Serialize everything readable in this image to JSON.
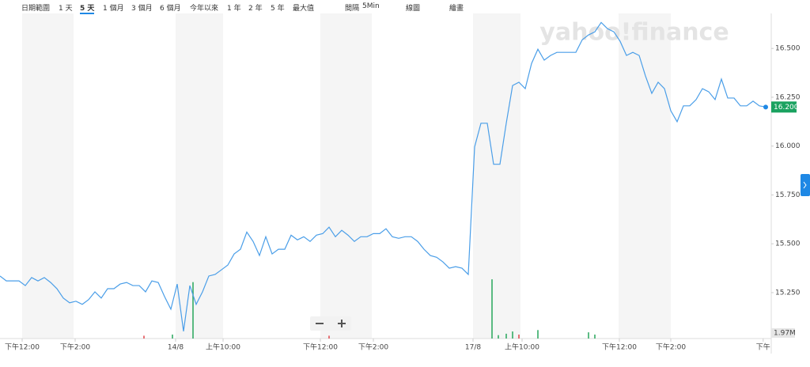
{
  "toolbar": {
    "items": [
      "日期範圍",
      "1 天",
      "5 天",
      "1 個月",
      "3 個月",
      "6 個月",
      "今年以來",
      "1 年",
      "2 年",
      "5 年",
      "最大值",
      "間隔",
      "5Min",
      "線圖",
      "繪畫"
    ],
    "selected": 2
  },
  "chart_data": {
    "type": "line",
    "watermark": "yahoo!finance",
    "x": [
      0,
      1,
      2,
      3,
      4,
      5,
      6,
      7,
      8,
      9,
      10,
      11,
      12,
      13,
      14,
      15,
      16,
      17,
      18,
      19,
      20,
      21,
      22,
      23,
      24,
      25,
      26,
      27,
      28,
      29,
      30,
      31,
      32,
      33,
      34,
      35,
      36,
      37,
      38,
      39,
      40,
      41,
      42,
      43,
      44,
      45,
      46,
      47,
      48,
      49,
      50,
      51,
      52,
      53,
      54,
      55,
      56,
      57,
      58,
      59,
      60,
      61,
      62,
      63,
      64,
      65,
      66,
      67,
      68,
      69,
      70,
      71,
      72,
      73,
      74,
      75,
      76,
      77,
      78,
      79,
      80,
      81,
      82,
      83,
      84,
      85,
      86,
      87,
      88,
      89,
      90,
      91,
      92,
      93,
      94,
      95,
      96,
      97,
      98,
      99,
      100,
      101,
      102,
      103,
      104,
      105,
      106,
      107,
      108,
      109,
      110,
      111,
      112,
      113,
      114,
      115,
      116,
      117,
      118,
      119,
      120,
      121
    ],
    "series": [
      {
        "name": "price",
        "color": "#4a9ee8",
        "values": [
          15.335,
          15.31,
          15.31,
          15.31,
          15.286,
          15.327,
          15.31,
          15.327,
          15.302,
          15.27,
          15.222,
          15.198,
          15.206,
          15.19,
          15.214,
          15.254,
          15.222,
          15.27,
          15.27,
          15.294,
          15.302,
          15.286,
          15.286,
          15.254,
          15.31,
          15.302,
          15.23,
          15.165,
          15.294,
          15.052,
          15.286,
          15.19,
          15.254,
          15.335,
          15.343,
          15.367,
          15.391,
          15.448,
          15.472,
          15.56,
          15.512,
          15.44,
          15.536,
          15.448,
          15.472,
          15.472,
          15.544,
          15.52,
          15.536,
          15.512,
          15.544,
          15.552,
          15.585,
          15.536,
          15.569,
          15.544,
          15.512,
          15.536,
          15.536,
          15.552,
          15.552,
          15.577,
          15.536,
          15.528,
          15.536,
          15.536,
          15.512,
          15.472,
          15.44,
          15.431,
          15.407,
          15.375,
          15.383,
          15.375,
          15.343,
          15.996,
          16.117,
          16.117,
          15.907,
          15.907,
          16.117,
          16.31,
          16.327,
          16.294,
          16.423,
          16.496,
          16.44,
          16.464,
          16.48,
          16.48,
          16.48,
          16.48,
          16.544,
          16.569,
          16.585,
          16.633,
          16.601,
          16.585,
          16.536,
          16.464,
          16.48,
          16.464,
          16.359,
          16.27,
          16.327,
          16.294,
          16.181,
          16.125,
          16.206,
          16.206,
          16.238,
          16.294,
          16.278,
          16.238,
          16.343,
          16.246,
          16.246,
          16.206,
          16.206,
          16.23,
          16.206,
          16.2
        ]
      }
    ],
    "current_price": {
      "value": 16.2,
      "label": "16.200"
    },
    "volume": {
      "x": [
        22.75,
        27.25,
        30.5,
        52,
        77.75,
        78.75,
        80,
        81,
        82,
        85,
        93,
        94
      ],
      "values": [
        1,
        1.4,
        20,
        1,
        21,
        1.2,
        1.7,
        2.5,
        1.4,
        3,
        2.2,
        1.4
      ],
      "colors": [
        "#e0474c",
        "#26a65b",
        "#26a65b",
        "#e0474c",
        "#26a65b",
        "#26a65b",
        "#26a65b",
        "#26a65b",
        "#e0474c",
        "#26a65b",
        "#26a65b",
        "#26a65b"
      ]
    },
    "xlim": [
      0,
      121.875
    ],
    "ylim": [
      15.015,
      16.675
    ],
    "y2lim": [
      0,
      115
    ],
    "yticks": [
      {
        "value": 15.25,
        "label": "15.250"
      },
      {
        "value": 15.5,
        "label": "15.500"
      },
      {
        "value": 15.75,
        "label": "15.750"
      },
      {
        "value": 16,
        "label": "16.000"
      },
      {
        "value": 16.25,
        "label": "16.250"
      },
      {
        "value": 16.5,
        "label": "16.500"
      }
    ],
    "y2ticks": [
      {
        "value": 1.97,
        "label": "1.97M"
      }
    ],
    "xticks": [
      {
        "value": 3.5,
        "label": "下午12:00"
      },
      {
        "value": 11.875,
        "label": "下午2:00"
      },
      {
        "value": 27.75,
        "label": "14/8"
      },
      {
        "value": 35.25,
        "label": "上午10:00"
      },
      {
        "value": 50.625,
        "label": "下午12:00"
      },
      {
        "value": 59,
        "label": "下午2:00"
      },
      {
        "value": 74.75,
        "label": "17/8"
      },
      {
        "value": 82.5,
        "label": "上午10:00"
      },
      {
        "value": 97.875,
        "label": "下午12:00"
      },
      {
        "value": 106,
        "label": "下午2:00"
      },
      {
        "value": 120.6,
        "label": "下午"
      }
    ],
    "shaded_ranges": [
      [
        3.5,
        11.625
      ],
      [
        27.75,
        35.25
      ],
      [
        50.6,
        58.75
      ],
      [
        74.75,
        82.25
      ],
      [
        97.75,
        106
      ]
    ],
    "grid": false
  }
}
